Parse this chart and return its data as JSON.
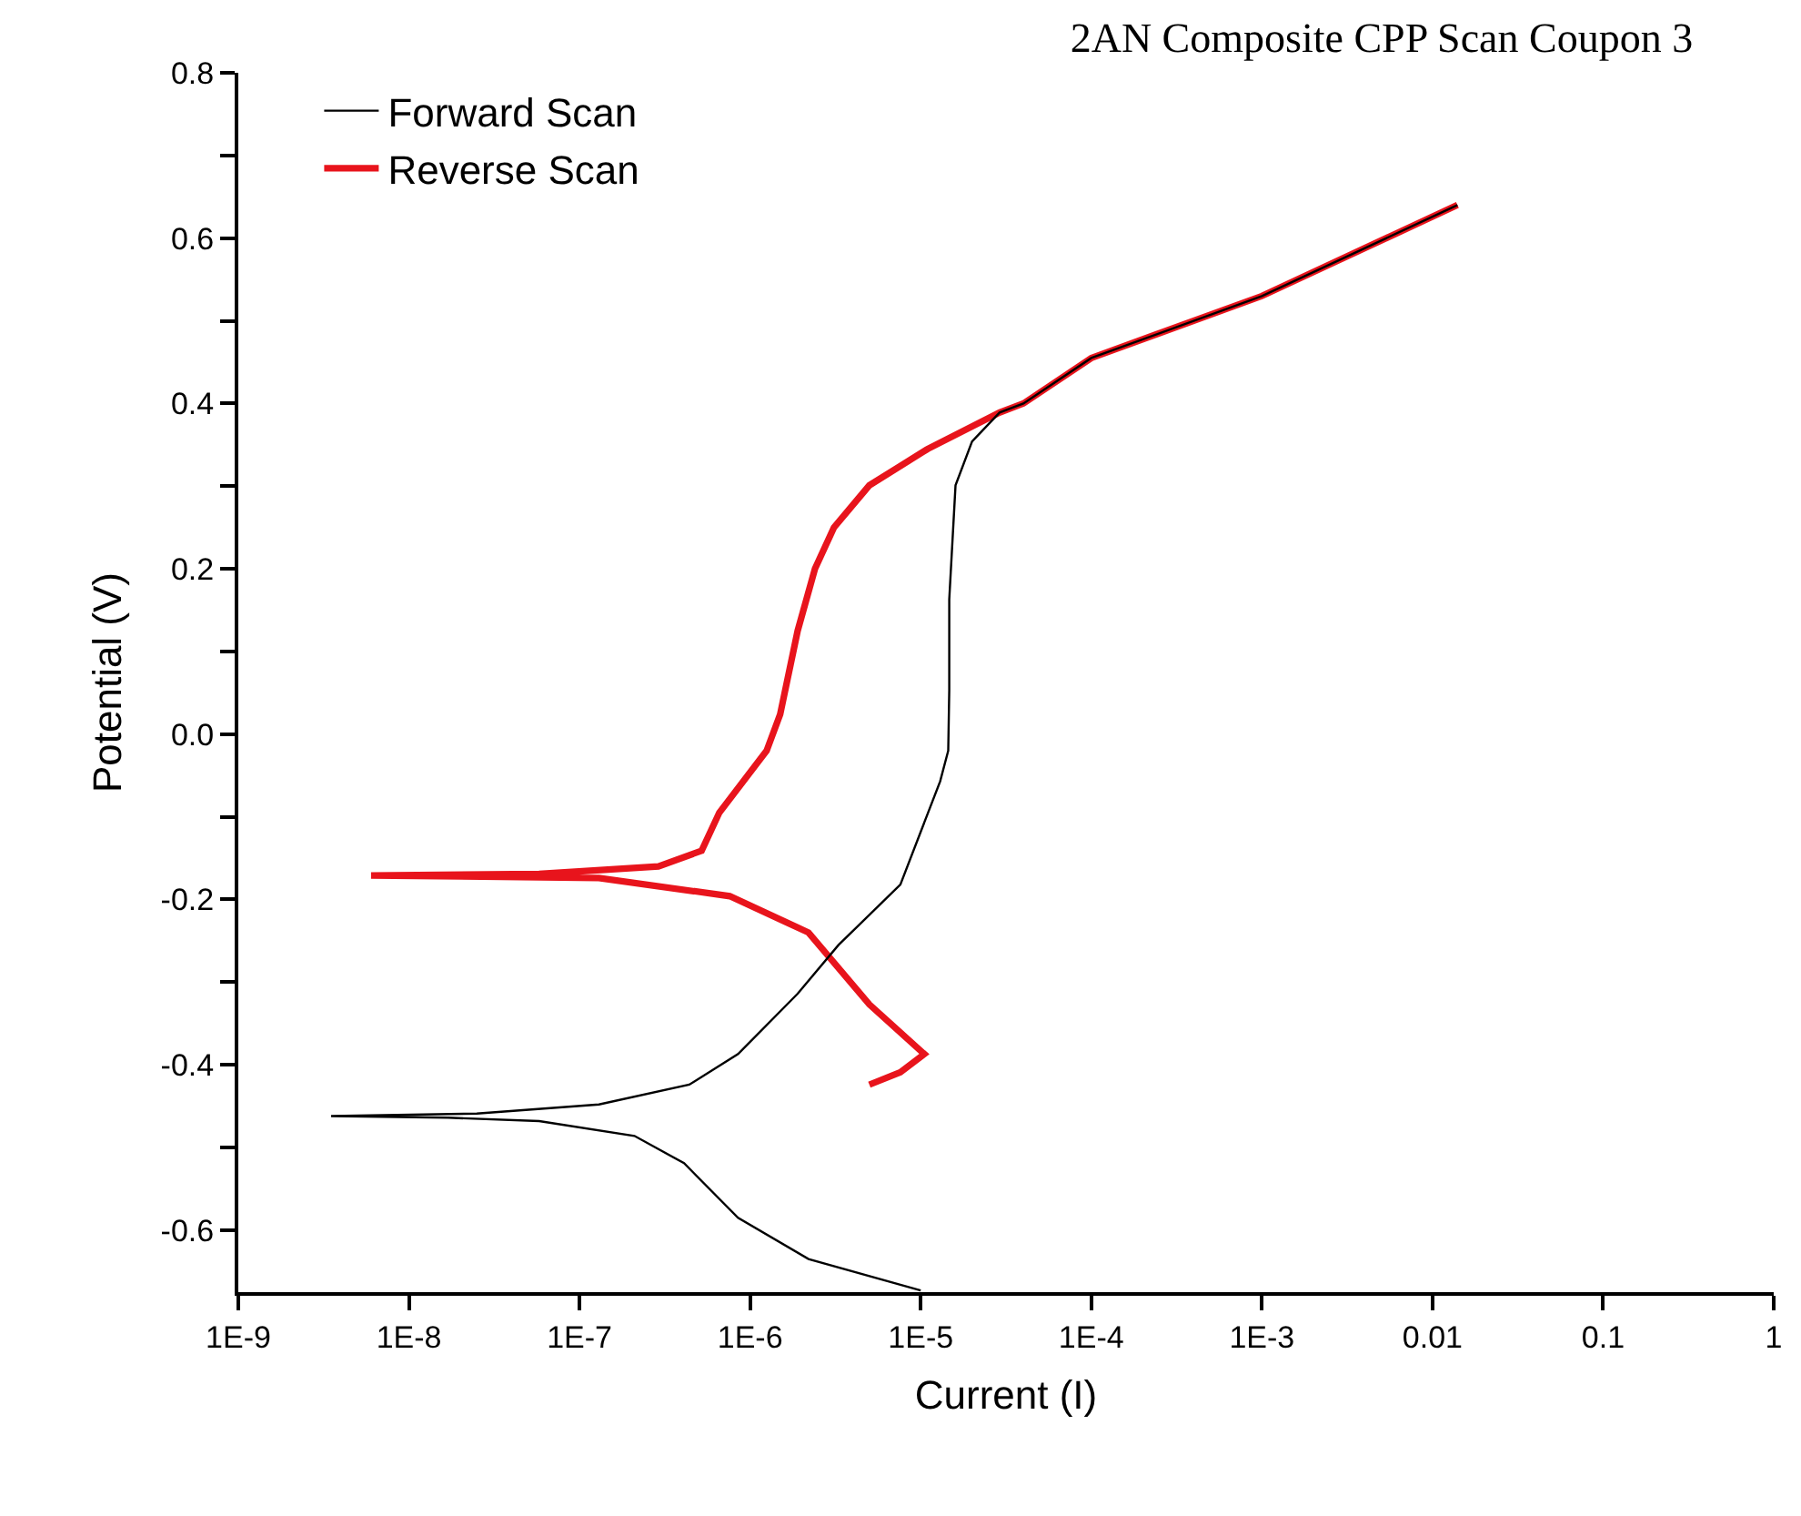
{
  "chart_data": {
    "type": "line",
    "title": "2AN Composite CPP Scan Coupon 3",
    "xlabel": "Current (I)",
    "ylabel": "Potential (V)",
    "log": "x",
    "xlim": [
      1e-09,
      1
    ],
    "ylim": [
      -0.675,
      0.8
    ],
    "xticks": [
      {
        "value": 1e-09,
        "label": "1E-9"
      },
      {
        "value": 1e-08,
        "label": "1E-8"
      },
      {
        "value": 1e-07,
        "label": "1E-7"
      },
      {
        "value": 1e-06,
        "label": "1E-6"
      },
      {
        "value": 1e-05,
        "label": "1E-5"
      },
      {
        "value": 0.0001,
        "label": "1E-4"
      },
      {
        "value": 0.001,
        "label": "1E-3"
      },
      {
        "value": 0.01,
        "label": "0.01"
      },
      {
        "value": 0.1,
        "label": "0.1"
      },
      {
        "value": 1,
        "label": "1"
      }
    ],
    "yticks": [
      {
        "value": -0.6,
        "label": "-0.6"
      },
      {
        "value": -0.5,
        "label": null
      },
      {
        "value": -0.4,
        "label": "-0.4"
      },
      {
        "value": -0.3,
        "label": null
      },
      {
        "value": -0.2,
        "label": "-0.2"
      },
      {
        "value": -0.1,
        "label": null
      },
      {
        "value": 0,
        "label": "0.0"
      },
      {
        "value": 0.1,
        "label": null
      },
      {
        "value": 0.2,
        "label": "0.2"
      },
      {
        "value": 0.3,
        "label": null
      },
      {
        "value": 0.4,
        "label": "0.4"
      },
      {
        "value": 0.5,
        "label": null
      },
      {
        "value": 0.6,
        "label": "0.6"
      },
      {
        "value": 0.7,
        "label": null
      },
      {
        "value": 0.8,
        "label": "0.8"
      }
    ],
    "legend": "top left",
    "marker": "none",
    "line_style": "solid",
    "series": [
      {
        "name": "Forward Scan",
        "color": "#000000",
        "x": [
          1e-05,
          2.2e-06,
          8.5e-07,
          4.1e-07,
          2.1e-07,
          5.8e-08,
          1.7e-08,
          3.5e-09,
          2.5e-08,
          1.3e-07,
          4.4e-07,
          8.5e-07,
          1.9e-06,
          3.3e-06,
          7.6e-06,
          1.3e-05,
          1.45e-05,
          1.47e-05,
          1.47e-05,
          1.6e-05,
          2e-05,
          2.9e-05,
          4e-05,
          0.0001,
          0.001,
          0.014
        ],
        "values": [
          -0.673,
          -0.635,
          -0.585,
          -0.519,
          -0.486,
          -0.468,
          -0.464,
          -0.462,
          -0.459,
          -0.448,
          -0.424,
          -0.387,
          -0.314,
          -0.255,
          -0.182,
          -0.057,
          -0.02,
          0.053,
          0.163,
          0.301,
          0.354,
          0.389,
          0.4,
          0.455,
          0.53,
          0.64
        ]
      },
      {
        "name": "Reverse Scan",
        "color": "#e8141c",
        "x": [
          0.014,
          0.001,
          0.0001,
          4e-05,
          2.9e-05,
          1.1e-05,
          5e-06,
          3.1e-06,
          2.4e-06,
          1.9e-06,
          1.5e-06,
          1.25e-06,
          6.6e-07,
          5.2e-07,
          2.9e-07,
          5.8e-08,
          6e-09,
          1.3e-07,
          7.6e-07,
          2.2e-06,
          5e-06,
          1.05e-05,
          7.6e-06,
          5e-06
        ],
        "values": [
          0.64,
          0.53,
          0.455,
          0.4,
          0.389,
          0.345,
          0.301,
          0.25,
          0.2,
          0.125,
          0.024,
          -0.02,
          -0.095,
          -0.141,
          -0.16,
          -0.169,
          -0.171,
          -0.174,
          -0.196,
          -0.24,
          -0.327,
          -0.387,
          -0.409,
          -0.424
        ]
      }
    ]
  }
}
